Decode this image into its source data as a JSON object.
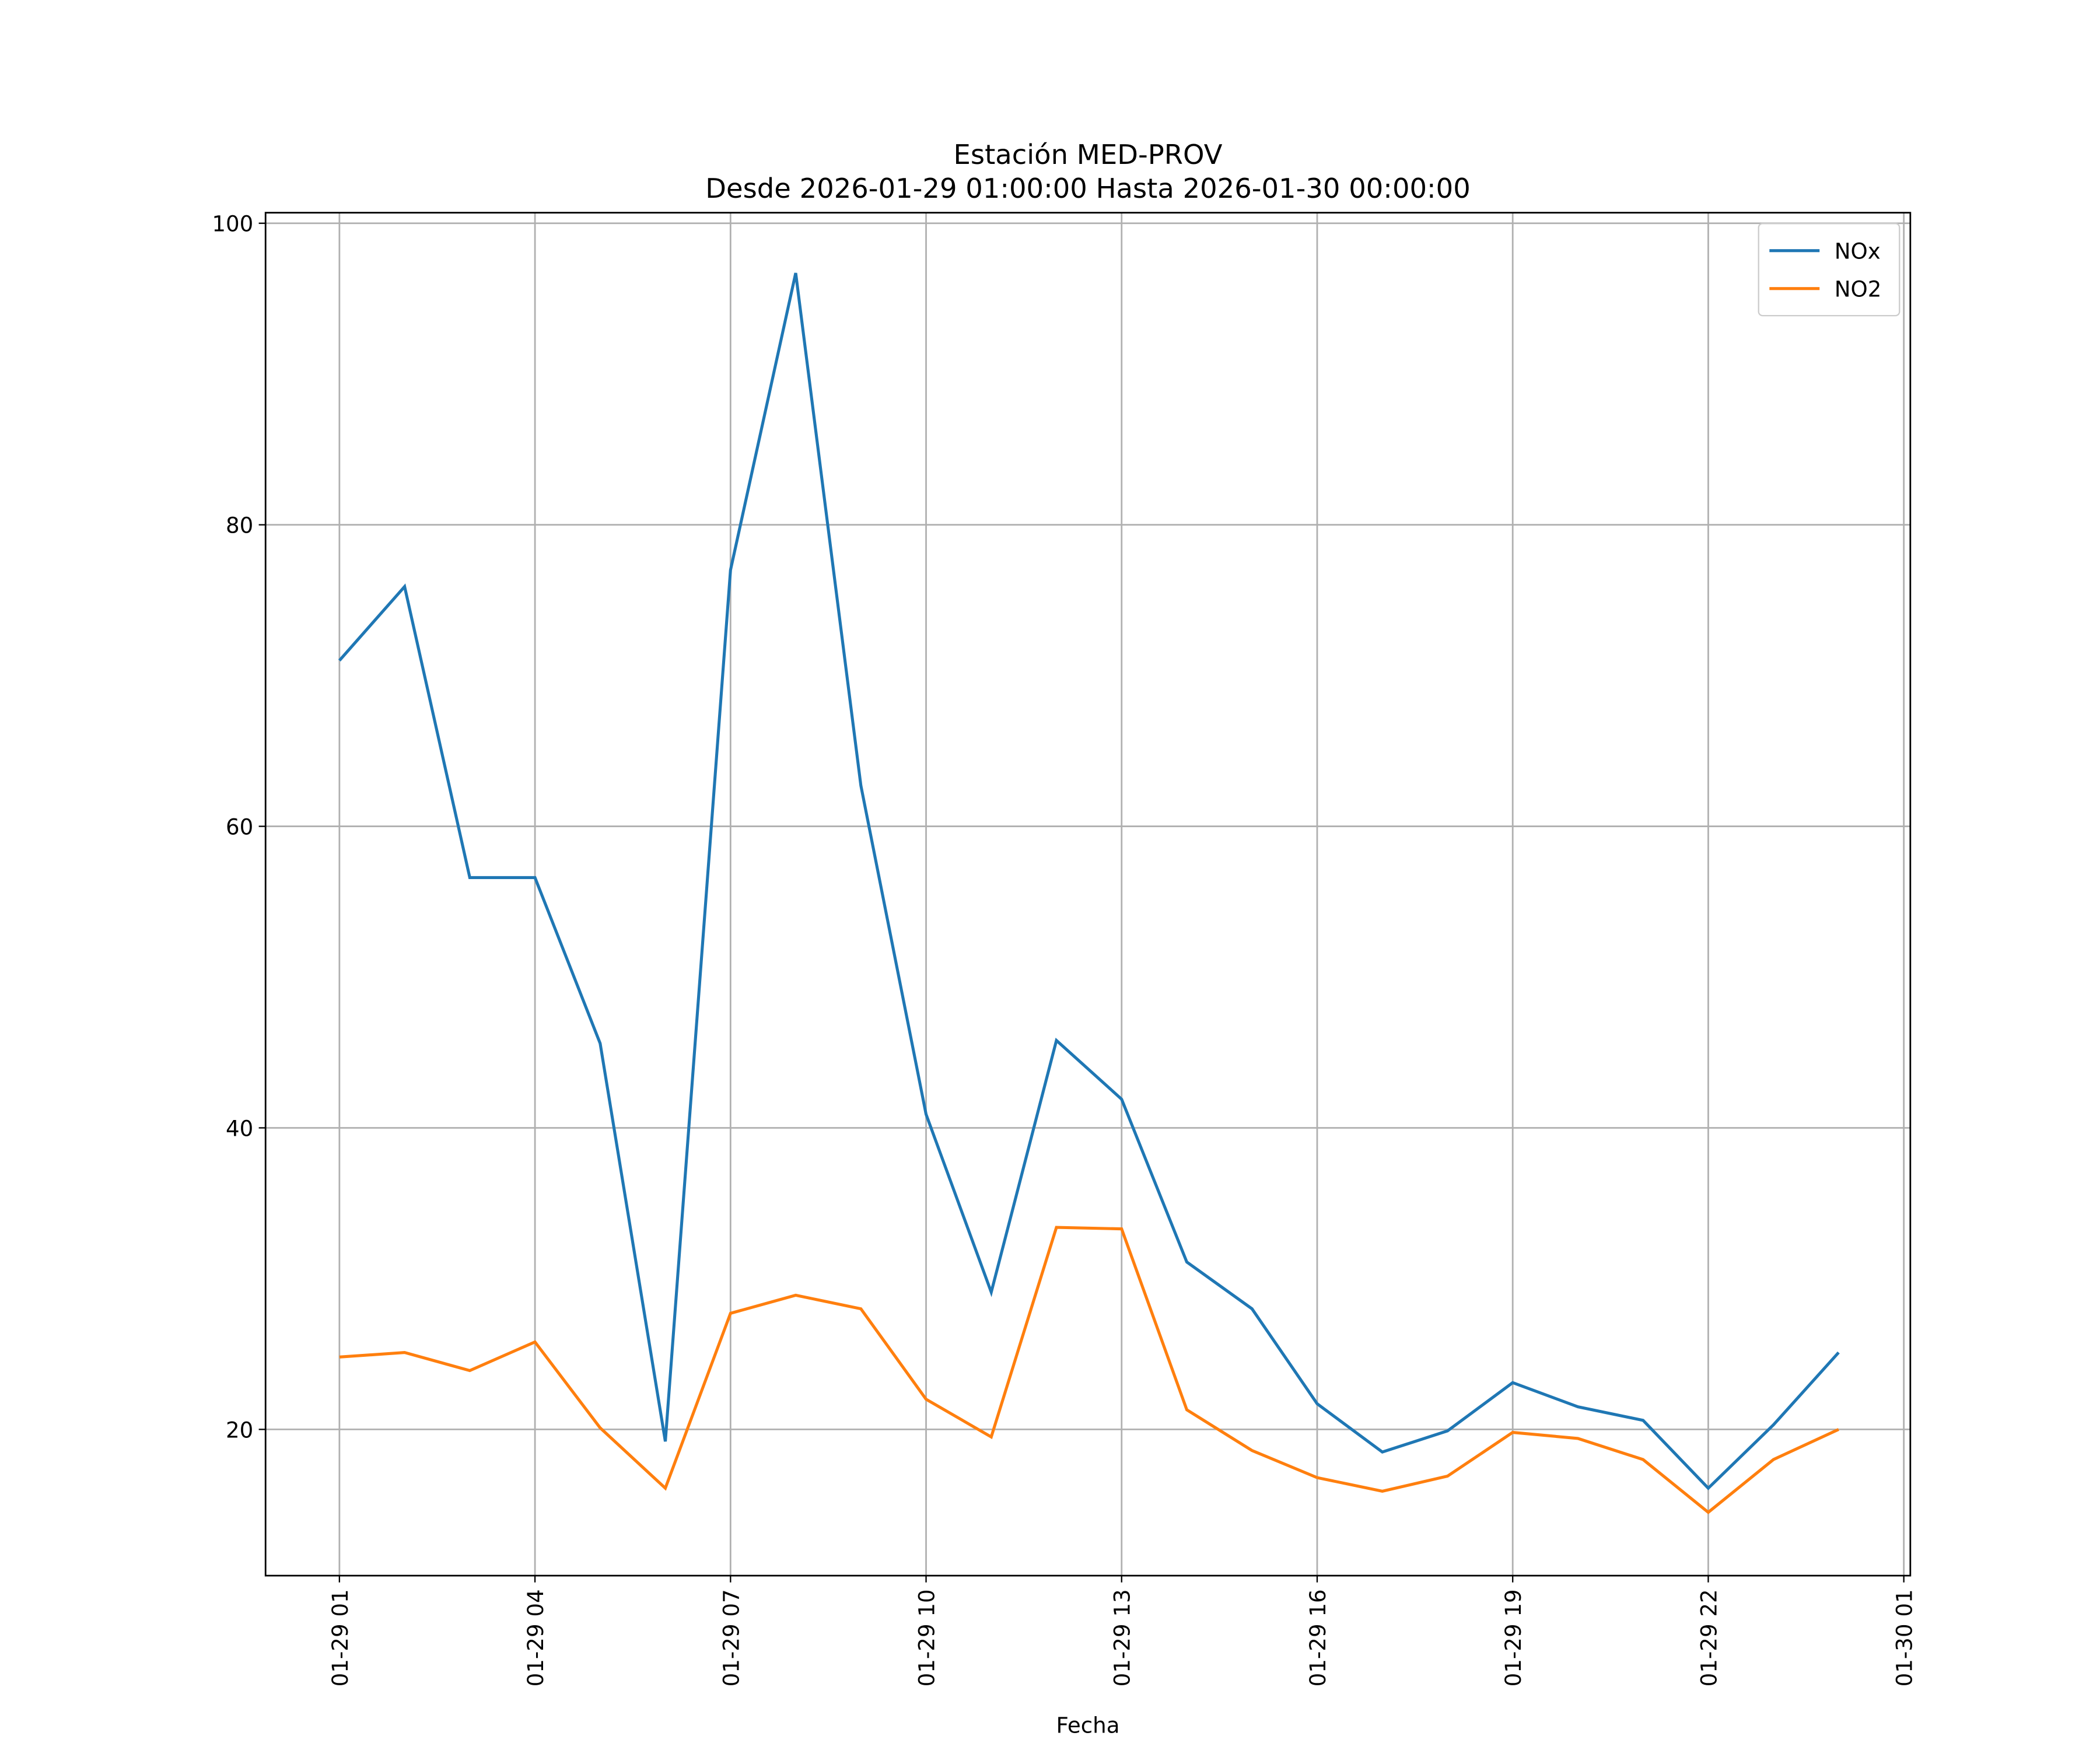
{
  "chart_data": {
    "type": "line",
    "title": "Estación MED-PROV",
    "subtitle": "Desde 2026-01-29 01:00:00 Hasta 2026-01-30 00:00:00",
    "x_label": "Fecha",
    "x": [
      "01-29 01",
      "01-29 02",
      "01-29 03",
      "01-29 04",
      "01-29 05",
      "01-29 06",
      "01-29 07",
      "01-29 08",
      "01-29 09",
      "01-29 10",
      "01-29 11",
      "01-29 12",
      "01-29 13",
      "01-29 14",
      "01-29 15",
      "01-29 16",
      "01-29 17",
      "01-29 18",
      "01-29 19",
      "01-29 20",
      "01-29 21",
      "01-29 22",
      "01-29 23",
      "01-30 00"
    ],
    "series": [
      {
        "name": "NOx",
        "color": "#1f77b4",
        "values": [
          71.0,
          75.9,
          56.6,
          56.6,
          45.6,
          19.2,
          77.0,
          96.7,
          62.7,
          40.9,
          29.1,
          45.8,
          41.9,
          31.1,
          28.0,
          21.7,
          18.5,
          19.9,
          23.1,
          21.5,
          20.6,
          16.1,
          20.3,
          25.1
        ]
      },
      {
        "name": "NO2",
        "color": "#ff7f0e",
        "values": [
          24.8,
          25.1,
          23.9,
          25.8,
          20.1,
          16.1,
          27.7,
          28.9,
          28.0,
          22.0,
          19.5,
          33.4,
          33.3,
          21.3,
          18.6,
          16.8,
          15.9,
          16.9,
          19.8,
          19.4,
          18.0,
          14.5,
          18.0,
          20.0
        ]
      }
    ],
    "xlim": [
      "01-28 23:52",
      "01-30 01:06"
    ],
    "xticks": [
      "01-29 01",
      "01-29 04",
      "01-29 07",
      "01-29 10",
      "01-29 13",
      "01-29 16",
      "01-29 19",
      "01-29 22",
      "01-30 01"
    ],
    "ylim": [
      10.3,
      100.7
    ],
    "yticks": [
      20,
      40,
      60,
      80,
      100
    ],
    "grid": true,
    "legend": "upper-right"
  }
}
